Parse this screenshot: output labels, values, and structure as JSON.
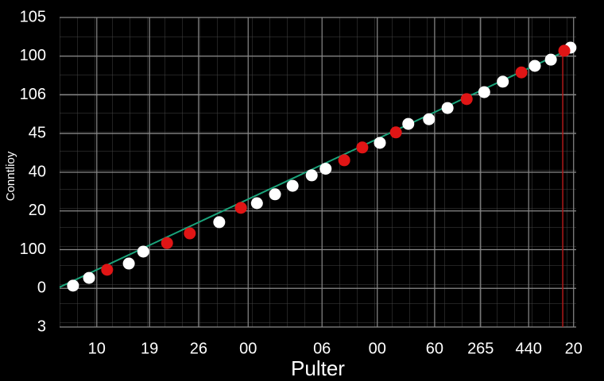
{
  "chart_data": {
    "type": "scatter",
    "x_label": "Pulter",
    "y_label": "Conntlioy",
    "xlim": [
      0,
      100
    ],
    "ylim": [
      0,
      8
    ],
    "xticks": [
      {
        "value": 7.2,
        "label": "10"
      },
      {
        "value": 17.4,
        "label": "19"
      },
      {
        "value": 26.9,
        "label": "26"
      },
      {
        "value": 36.5,
        "label": "00"
      },
      {
        "value": 50.8,
        "label": "06"
      },
      {
        "value": 61.5,
        "label": "00"
      },
      {
        "value": 72.6,
        "label": "60"
      },
      {
        "value": 81.5,
        "label": "265"
      },
      {
        "value": 90.8,
        "label": "440"
      },
      {
        "value": 99.5,
        "label": "20"
      }
    ],
    "yticks": [
      {
        "value": 8,
        "label": "105"
      },
      {
        "value": 7,
        "label": "100"
      },
      {
        "value": 6,
        "label": "106"
      },
      {
        "value": 5,
        "label": "45"
      },
      {
        "value": 4,
        "label": "40"
      },
      {
        "value": 3,
        "label": "20"
      },
      {
        "value": 2,
        "label": "100"
      },
      {
        "value": 1,
        "label": "0"
      },
      {
        "value": 0,
        "label": "3"
      }
    ],
    "grid": true,
    "vline": {
      "x": 97.4,
      "color": "#b01818"
    },
    "trend": {
      "color": "#1aa37a",
      "x": [
        0,
        100
      ],
      "values": [
        1.03,
        7.26
      ]
    },
    "series": [
      {
        "color": "#ffffff",
        "x": [
          2.6,
          5.7,
          13.4,
          16.2,
          30.9,
          38.2,
          41.7,
          45.1,
          48.8,
          51.5,
          62.0,
          67.5,
          71.5,
          75.1,
          82.2,
          85.8,
          92.0,
          95.1,
          98.9
        ],
        "values": [
          1.07,
          1.27,
          1.64,
          1.95,
          2.71,
          3.2,
          3.43,
          3.65,
          3.92,
          4.09,
          4.76,
          5.25,
          5.37,
          5.66,
          6.07,
          6.34,
          6.75,
          6.91,
          7.22
        ]
      },
      {
        "color": "#e01515",
        "x": [
          9.2,
          20.8,
          25.2,
          35.1,
          55.1,
          58.6,
          65.1,
          78.8,
          89.4,
          97.7
        ],
        "values": [
          1.48,
          2.17,
          2.42,
          3.08,
          4.31,
          4.64,
          5.03,
          5.89,
          6.58,
          7.14
        ]
      }
    ]
  }
}
